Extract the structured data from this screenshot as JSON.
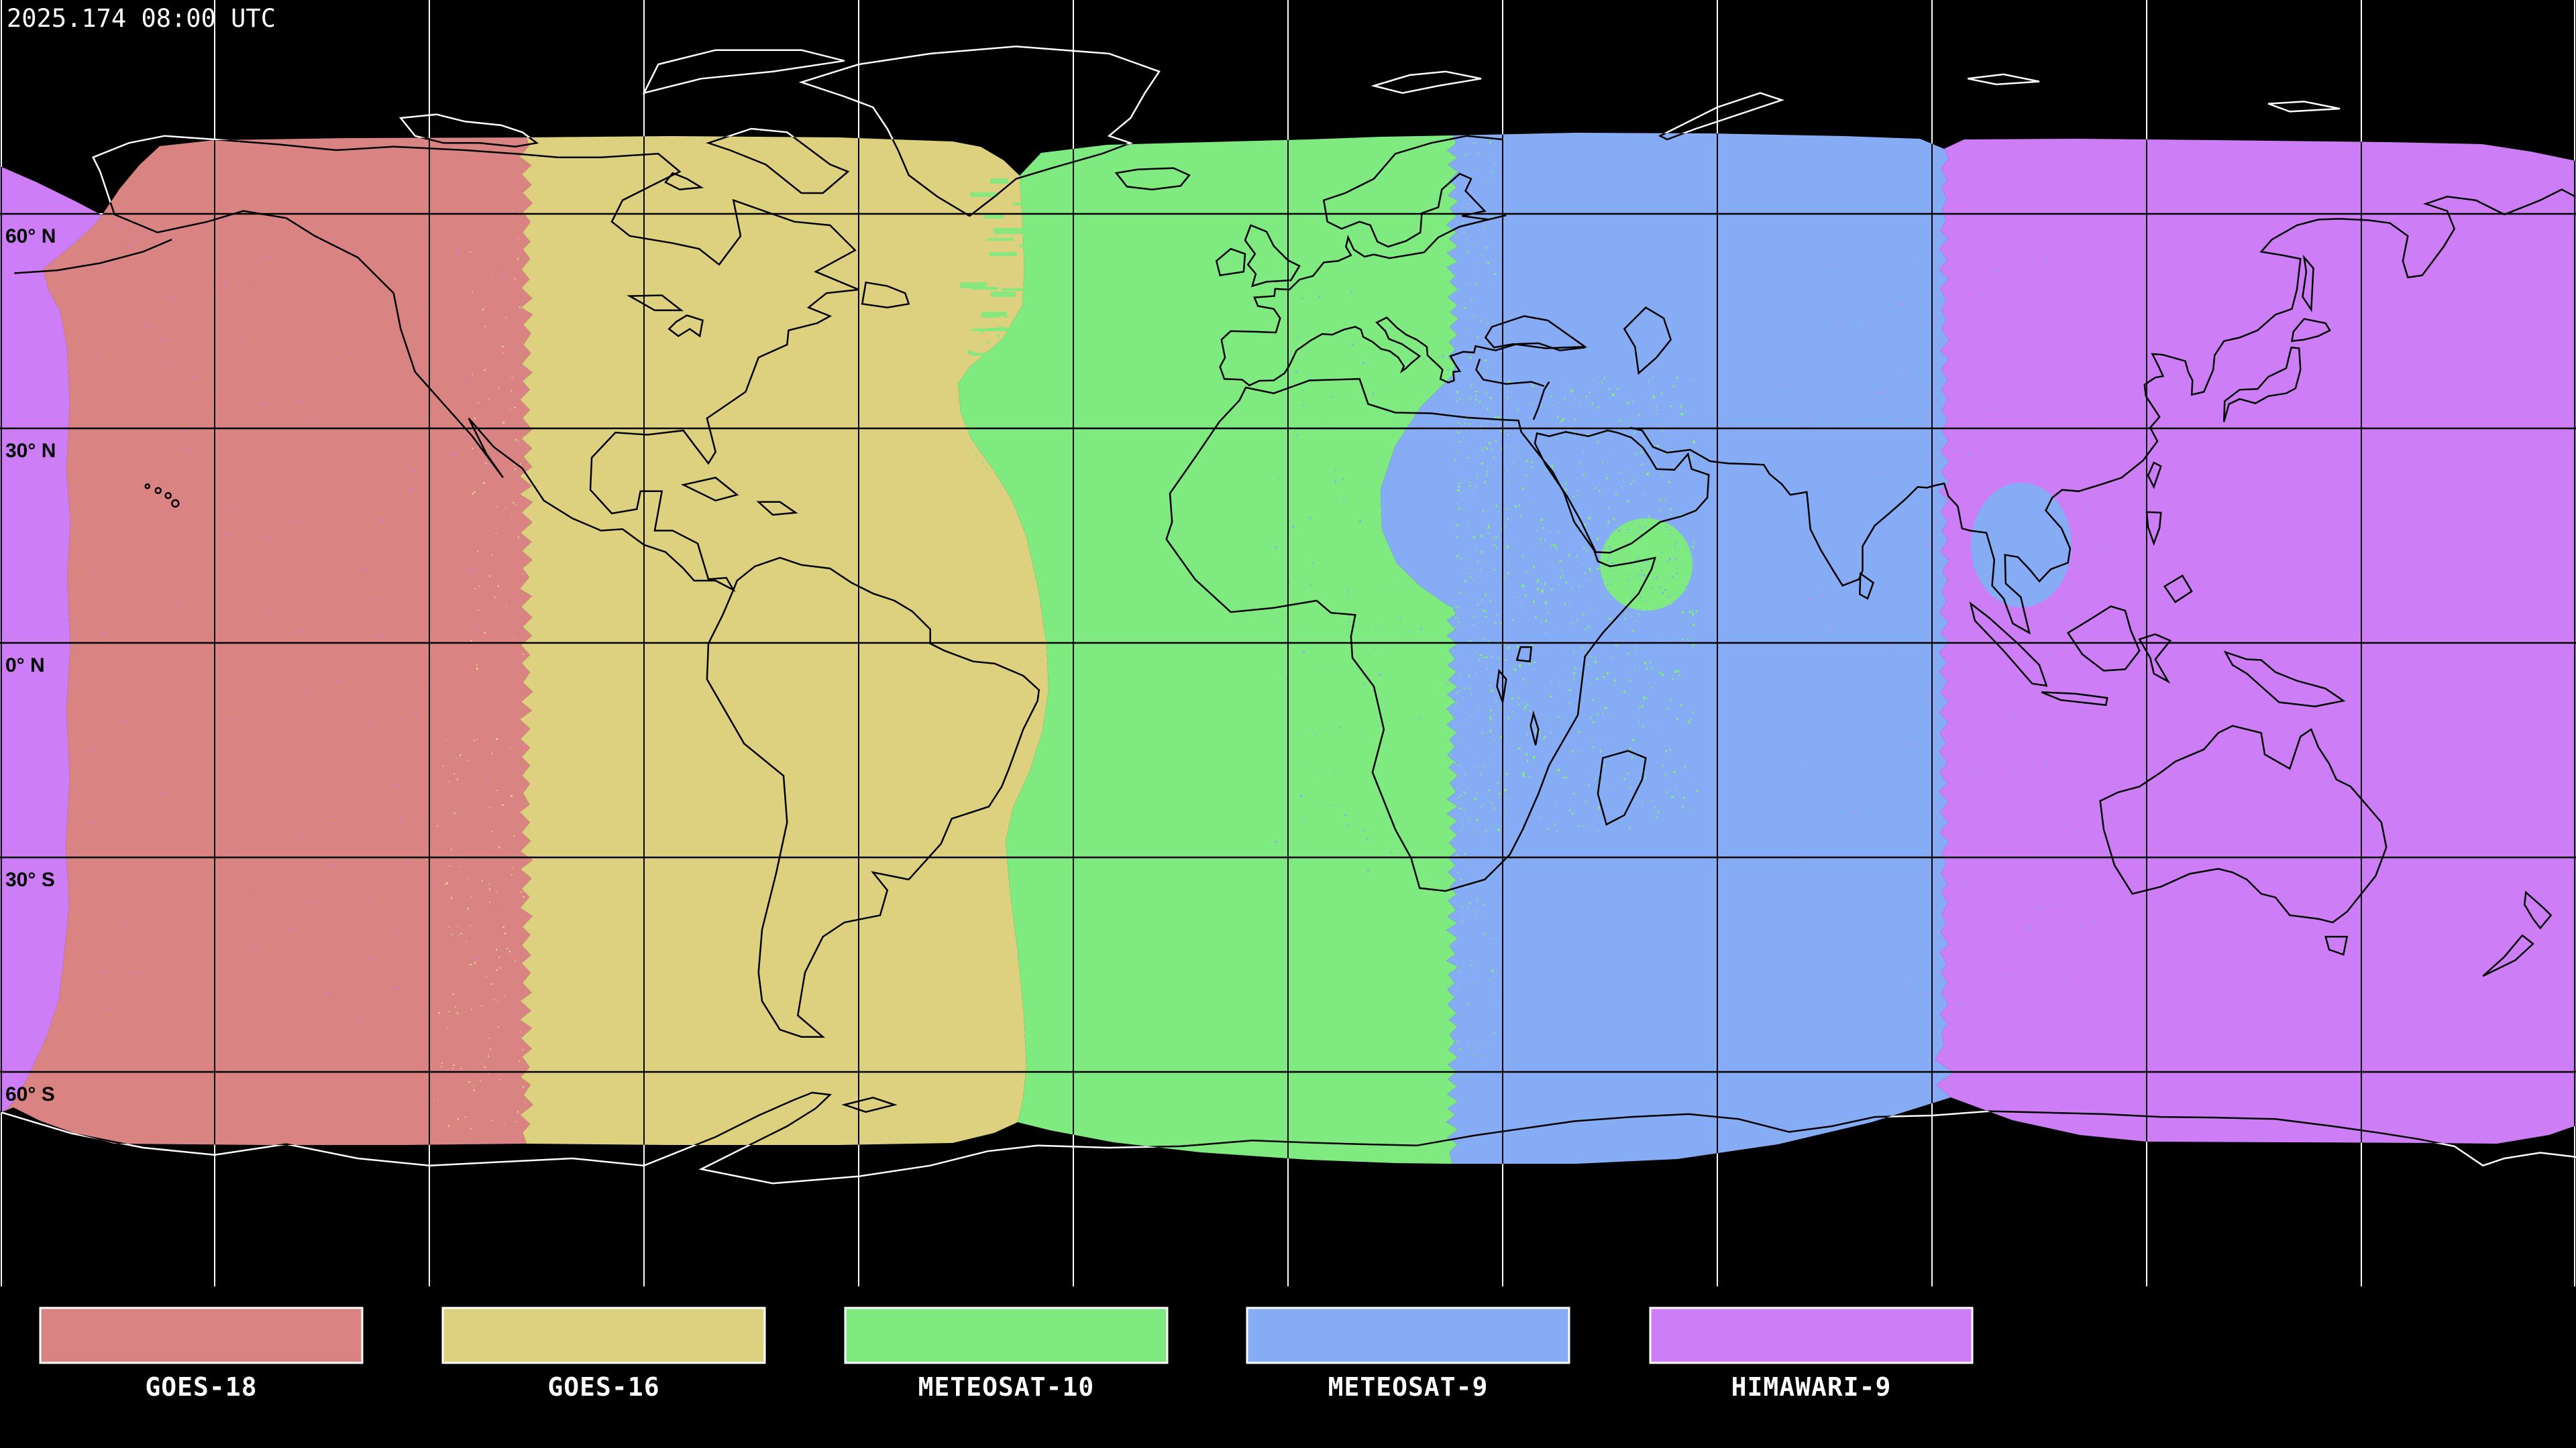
{
  "header": {
    "timestamp": "2025.174 08:00 UTC"
  },
  "map": {
    "latitude_labels": [
      "60° N",
      "30° N",
      "0° N",
      "30° S",
      "60° S"
    ],
    "colors": {
      "background": "#000000",
      "graticule_on_dark": "#ffffff",
      "graticule_on_coverage": "#000000",
      "coastline_on_dark": "#ffffff",
      "coastline_on_coverage": "#000000",
      "label_text": "#000000",
      "timestamp_text": "#ffffff"
    }
  },
  "legend": {
    "items": [
      {
        "label": "GOES-18",
        "color": "#d98383"
      },
      {
        "label": "GOES-16",
        "color": "#ddd07e"
      },
      {
        "label": "METEOSAT-10",
        "color": "#7eea80"
      },
      {
        "label": "METEOSAT-9",
        "color": "#85acf4"
      },
      {
        "label": "HIMAWARI-9",
        "color": "#cd7df5"
      }
    ]
  }
}
